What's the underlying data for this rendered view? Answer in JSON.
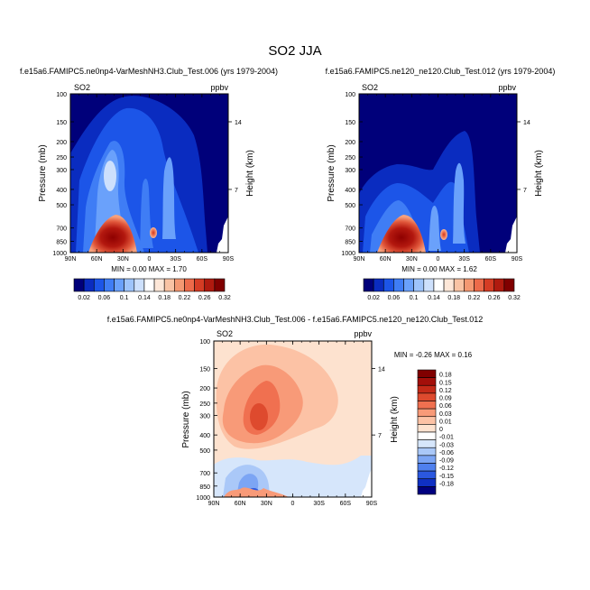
{
  "title": "SO2 JJA",
  "chart_data": [
    {
      "type": "heatmap",
      "title": "f.e15a6.FAMIPC5.ne0np4-VarMeshNH3.Club_Test.006 (yrs 1979-2004)",
      "field_label": "SO2",
      "units": "ppbv",
      "xlabel": "",
      "ylabel": "Pressure (mb)",
      "y2label": "Height (km)",
      "x_ticks": [
        "90N",
        "60N",
        "30N",
        "0",
        "30S",
        "60S",
        "90S"
      ],
      "y_ticks": [
        "100",
        "150",
        "200",
        "250",
        "300",
        "400",
        "500",
        "700",
        "850",
        "1000"
      ],
      "y2_ticks": [
        "14",
        "7"
      ],
      "y_scale": "log",
      "ylim": [
        1000,
        100
      ],
      "min_text": "MIN =  0.00  MAX =  1.70",
      "min": 0.0,
      "max": 1.7,
      "colorbar_labels": [
        "0.02",
        "0.06",
        "0.1",
        "0.14",
        "0.18",
        "0.22",
        "0.26",
        "0.32"
      ],
      "colorbar_colors": [
        "#00007a",
        "#0a2cc0",
        "#1c55e8",
        "#3f7df5",
        "#6aa1fb",
        "#9ec4fb",
        "#cde0fc",
        "#ffffff",
        "#fde7d8",
        "#f9c3a4",
        "#f49872",
        "#ec6a4a",
        "#d53c24",
        "#b01a0f",
        "#800000"
      ]
    },
    {
      "type": "heatmap",
      "title": "f.e15a6.FAMIPC5.ne120_ne120.Club_Test.012 (yrs 1979-2004)",
      "field_label": "SO2",
      "units": "ppbv",
      "xlabel": "",
      "ylabel": "Pressure (mb)",
      "y2label": "Height (km)",
      "x_ticks": [
        "90N",
        "60N",
        "30N",
        "0",
        "30S",
        "60S",
        "90S"
      ],
      "y_ticks": [
        "100",
        "150",
        "200",
        "250",
        "300",
        "400",
        "500",
        "700",
        "850",
        "1000"
      ],
      "y2_ticks": [
        "14",
        "7"
      ],
      "y_scale": "log",
      "ylim": [
        1000,
        100
      ],
      "min_text": "MIN =  0.00  MAX =  1.62",
      "min": 0.0,
      "max": 1.62,
      "colorbar_labels": [
        "0.02",
        "0.06",
        "0.1",
        "0.14",
        "0.18",
        "0.22",
        "0.26",
        "0.32"
      ],
      "colorbar_colors": [
        "#00007a",
        "#0a2cc0",
        "#1c55e8",
        "#3f7df5",
        "#6aa1fb",
        "#9ec4fb",
        "#cde0fc",
        "#ffffff",
        "#fde7d8",
        "#f9c3a4",
        "#f49872",
        "#ec6a4a",
        "#d53c24",
        "#b01a0f",
        "#800000"
      ]
    },
    {
      "type": "heatmap",
      "title": "f.e15a6.FAMIPC5.ne0np4-VarMeshNH3.Club_Test.006 - f.e15a6.FAMIPC5.ne120_ne120.Club_Test.012",
      "field_label": "SO2",
      "units": "ppbv",
      "xlabel": "",
      "ylabel": "Pressure (mb)",
      "y2label": "Height (km)",
      "x_ticks": [
        "90N",
        "60N",
        "30N",
        "0",
        "30S",
        "60S",
        "90S"
      ],
      "y_ticks": [
        "100",
        "150",
        "200",
        "250",
        "300",
        "400",
        "500",
        "700",
        "850",
        "1000"
      ],
      "y2_ticks": [
        "14",
        "7"
      ],
      "y_scale": "log",
      "ylim": [
        1000,
        100
      ],
      "min_text": "MIN = -0.26  MAX =  0.16",
      "min": -0.26,
      "max": 0.16,
      "colorbar_labels": [
        "0.18",
        "0.15",
        "0.12",
        "0.09",
        "0.06",
        "0.03",
        "0.01",
        "0",
        "-0.01",
        "-0.03",
        "-0.06",
        "-0.09",
        "-0.12",
        "-0.15",
        "-0.18"
      ],
      "colorbar_colors": [
        "#800000",
        "#a30f0a",
        "#c42a18",
        "#de4a2e",
        "#f07050",
        "#f89a78",
        "#fcc2a5",
        "#fde2cf",
        "#ffffff",
        "#d6e6fb",
        "#aac8f8",
        "#7ca5f4",
        "#4f80ee",
        "#2b58e0",
        "#0f30c4",
        "#000080"
      ]
    }
  ]
}
